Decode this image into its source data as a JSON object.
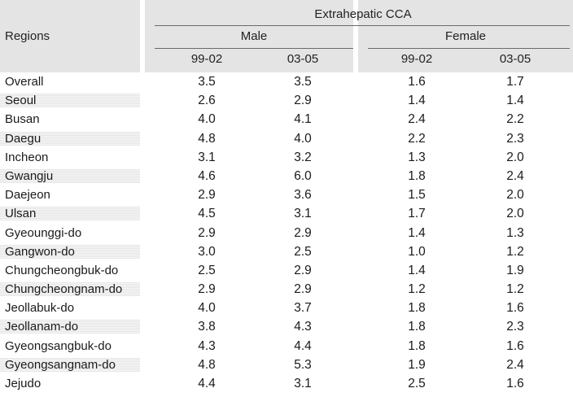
{
  "header": {
    "regions_label": "Regions",
    "group_label": "Extrahepatic CCA",
    "male_label": "Male",
    "female_label": "Female",
    "periods": [
      "99-02",
      "03-05",
      "99-02",
      "03-05"
    ]
  },
  "rows": [
    {
      "region": "Overall",
      "values": [
        "3.5",
        "3.5",
        "1.6",
        "1.7"
      ]
    },
    {
      "region": "Seoul",
      "values": [
        "2.6",
        "2.9",
        "1.4",
        "1.4"
      ]
    },
    {
      "region": "Busan",
      "values": [
        "4.0",
        "4.1",
        "2.4",
        "2.2"
      ]
    },
    {
      "region": "Daegu",
      "values": [
        "4.8",
        "4.0",
        "2.2",
        "2.3"
      ]
    },
    {
      "region": "Incheon",
      "values": [
        "3.1",
        "3.2",
        "1.3",
        "2.0"
      ]
    },
    {
      "region": "Gwangju",
      "values": [
        "4.6",
        "6.0",
        "1.8",
        "2.4"
      ]
    },
    {
      "region": "Daejeon",
      "values": [
        "2.9",
        "3.6",
        "1.5",
        "2.0"
      ]
    },
    {
      "region": "Ulsan",
      "values": [
        "4.5",
        "3.1",
        "1.7",
        "2.0"
      ]
    },
    {
      "region": "Gyeounggi-do",
      "values": [
        "2.9",
        "2.9",
        "1.4",
        "1.3"
      ]
    },
    {
      "region": "Gangwon-do",
      "values": [
        "3.0",
        "2.5",
        "1.0",
        "1.2"
      ]
    },
    {
      "region": "Chungcheongbuk-do",
      "values": [
        "2.5",
        "2.9",
        "1.4",
        "1.9"
      ]
    },
    {
      "region": "Chungcheongnam-do",
      "values": [
        "2.9",
        "2.9",
        "1.2",
        "1.2"
      ]
    },
    {
      "region": "Jeollabuk-do",
      "values": [
        "4.0",
        "3.7",
        "1.8",
        "1.6"
      ]
    },
    {
      "region": "Jeollanam-do",
      "values": [
        "3.8",
        "4.3",
        "1.8",
        "2.3"
      ]
    },
    {
      "region": "Gyeongsangbuk-do",
      "values": [
        "4.3",
        "4.4",
        "1.8",
        "1.6"
      ]
    },
    {
      "region": "Gyeongsangnam-do",
      "values": [
        "4.8",
        "5.3",
        "1.9",
        "2.4"
      ]
    },
    {
      "region": "Jejudo",
      "values": [
        "4.4",
        "3.1",
        "2.5",
        "1.6"
      ]
    }
  ]
}
